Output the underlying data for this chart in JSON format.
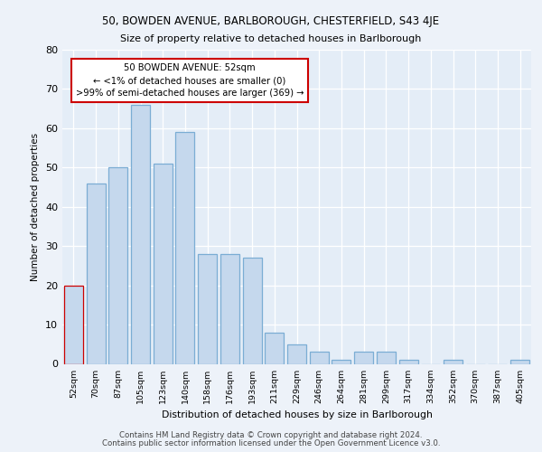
{
  "title1": "50, BOWDEN AVENUE, BARLBOROUGH, CHESTERFIELD, S43 4JE",
  "title2": "Size of property relative to detached houses in Barlborough",
  "xlabel": "Distribution of detached houses by size in Barlborough",
  "ylabel": "Number of detached properties",
  "categories": [
    "52sqm",
    "70sqm",
    "87sqm",
    "105sqm",
    "123sqm",
    "140sqm",
    "158sqm",
    "176sqm",
    "193sqm",
    "211sqm",
    "229sqm",
    "246sqm",
    "264sqm",
    "281sqm",
    "299sqm",
    "317sqm",
    "334sqm",
    "352sqm",
    "370sqm",
    "387sqm",
    "405sqm"
  ],
  "values": [
    20,
    46,
    50,
    66,
    51,
    59,
    28,
    28,
    27,
    8,
    5,
    3,
    1,
    3,
    3,
    1,
    0,
    1,
    0,
    0,
    1
  ],
  "bar_color": "#c5d8ed",
  "bar_edge_color": "#7badd4",
  "highlight_bar_index": 0,
  "highlight_edge_color": "#cc0000",
  "annotation_text": "50 BOWDEN AVENUE: 52sqm\n← <1% of detached houses are smaller (0)\n>99% of semi-detached houses are larger (369) →",
  "annotation_box_color": "#ffffff",
  "annotation_edge_color": "#cc0000",
  "ylim": [
    0,
    80
  ],
  "yticks": [
    0,
    10,
    20,
    30,
    40,
    50,
    60,
    70,
    80
  ],
  "footer1": "Contains HM Land Registry data © Crown copyright and database right 2024.",
  "footer2": "Contains public sector information licensed under the Open Government Licence v3.0.",
  "bg_color": "#edf2f9",
  "plot_bg_color": "#e4edf7"
}
